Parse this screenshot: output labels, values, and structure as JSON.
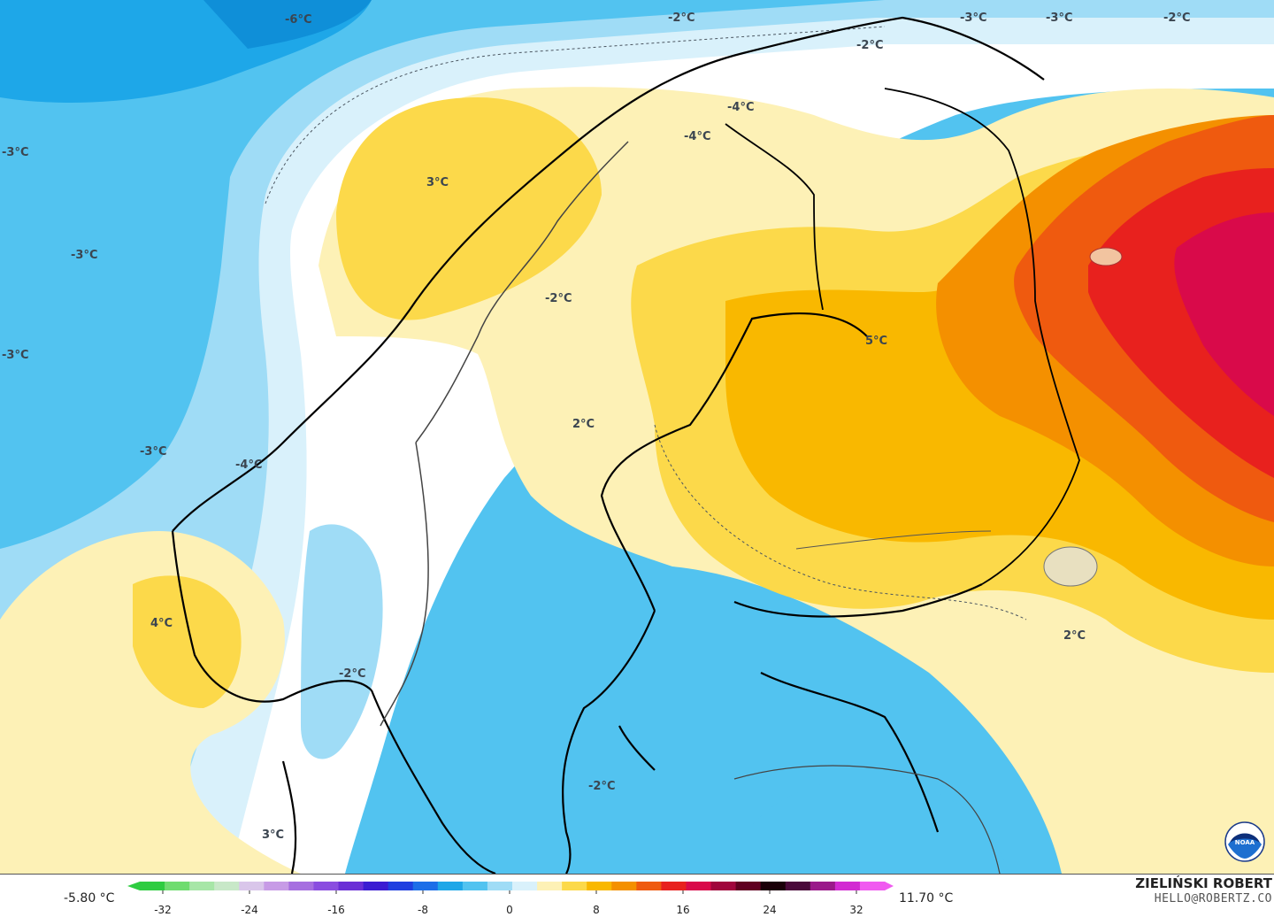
{
  "map": {
    "colors": {
      "sea_cold_deep": "#1ea7e8",
      "cold": "#52c3f0",
      "cool": "#9fdcf6",
      "light_cool": "#d9f1fb",
      "neutral": "#ffffff",
      "light_warm": "#fdf1b6",
      "warm": "#fcd94a",
      "warmer": "#f9b800",
      "orange": "#f49000",
      "red_orange": "#ef5a0f",
      "red": "#e8211e",
      "crimson": "#d90a4a",
      "coast": "#000000",
      "border": "#555555"
    },
    "temperature_labels": [
      {
        "text": "-6°C"
      },
      {
        "text": "-2°C"
      },
      {
        "text": "-3°C"
      },
      {
        "text": "-3°C"
      },
      {
        "text": "-2°C"
      },
      {
        "text": "-2°C"
      },
      {
        "text": "-3°C"
      },
      {
        "text": "-3°C"
      },
      {
        "text": "-3°C"
      },
      {
        "text": "3°C"
      },
      {
        "text": "-4°C"
      },
      {
        "text": "-4°C"
      },
      {
        "text": "-2°C"
      },
      {
        "text": "5°C"
      },
      {
        "text": "2°C"
      },
      {
        "text": "-3°C"
      },
      {
        "text": "-4°C"
      },
      {
        "text": "4°C"
      },
      {
        "text": "-2°C"
      },
      {
        "text": "2°C"
      },
      {
        "text": "-2°C"
      },
      {
        "text": "3°C"
      }
    ]
  },
  "legend": {
    "min_label": "-5.80 °C",
    "max_label": "11.70 °C",
    "ticks": [
      "-32",
      "-24",
      "-16",
      "-8",
      "0",
      "8",
      "16",
      "24",
      "32"
    ],
    "scale_colors": [
      "#2ecc40",
      "#6fdc6f",
      "#a7e6a7",
      "#c8e8c8",
      "#d9c6ea",
      "#c79be6",
      "#a66fe0",
      "#8a4de0",
      "#6a2fd6",
      "#3b1cd2",
      "#1f3fe0",
      "#1c6ee8",
      "#1ea7e8",
      "#52c3f0",
      "#9fdcf6",
      "#d9f1fb",
      "#fdf1b6",
      "#fcd94a",
      "#f9b800",
      "#f49000",
      "#ef5a0f",
      "#e8211e",
      "#d90a4a",
      "#a0063c",
      "#600020",
      "#1a0008",
      "#4a0a3a",
      "#9a1a8a",
      "#d22ad2",
      "#f05af0"
    ]
  },
  "branding": {
    "name": "ZIELIŃSKI ROBERT",
    "email": "HELLO@ROBERTZ.CO",
    "logo_text": "NOAA"
  }
}
